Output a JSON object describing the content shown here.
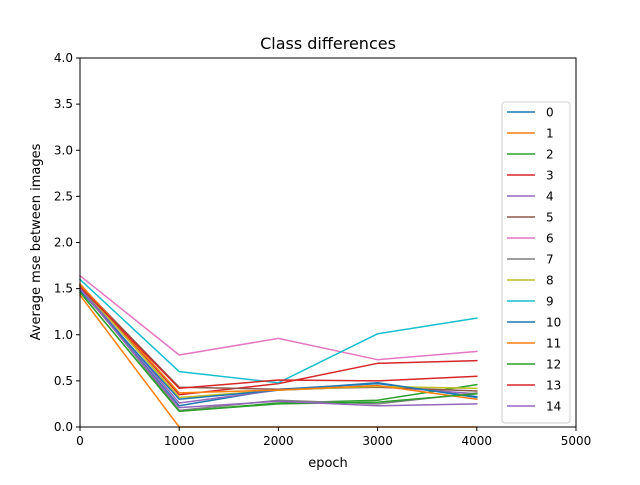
{
  "chart_data": {
    "type": "line",
    "title": "Class differences",
    "xlabel": "epoch",
    "ylabel": "Average mse between images",
    "xlim": [
      0,
      5000
    ],
    "ylim": [
      0,
      4.0
    ],
    "x_ticks": [
      0,
      1000,
      2000,
      3000,
      4000,
      5000
    ],
    "x_tick_labels": [
      "0",
      "1000",
      "2000",
      "3000",
      "4000",
      "5000"
    ],
    "y_ticks": [
      0,
      0.5,
      1.0,
      1.5,
      2.0,
      2.5,
      3.0,
      3.5,
      4.0
    ],
    "y_tick_labels": [
      "0.0",
      "0.5",
      "1.0",
      "1.5",
      "2.0",
      "2.5",
      "3.0",
      "3.5",
      "4.0"
    ],
    "grid": false,
    "legend_position": "right",
    "x": [
      0,
      1000,
      2000,
      3000,
      4000
    ],
    "series": [
      {
        "name": "0",
        "color": "#1f77b4",
        "values": [
          1.5,
          0.23,
          0.41,
          0.47,
          0.33
        ]
      },
      {
        "name": "1",
        "color": "#ff7f0e",
        "values": [
          1.43,
          0.0,
          0.0,
          0.0,
          0.0
        ]
      },
      {
        "name": "2",
        "color": "#2ca02c",
        "values": [
          1.46,
          0.17,
          0.26,
          0.29,
          0.46
        ]
      },
      {
        "name": "3",
        "color": "#d62728",
        "values": [
          1.55,
          0.35,
          0.47,
          0.69,
          0.72
        ]
      },
      {
        "name": "4",
        "color": "#9467bd",
        "values": [
          1.52,
          0.26,
          0.4,
          0.44,
          0.36
        ]
      },
      {
        "name": "5",
        "color": "#8c564b",
        "values": [
          1.54,
          0.43,
          0.41,
          0.43,
          0.39
        ]
      },
      {
        "name": "6",
        "color": "#e377c2",
        "values": [
          1.64,
          0.78,
          0.96,
          0.73,
          0.82
        ]
      },
      {
        "name": "7",
        "color": "#7f7f7f",
        "values": [
          1.52,
          0.18,
          0.29,
          0.25,
          0.37
        ]
      },
      {
        "name": "8",
        "color": "#bcbd22",
        "values": [
          1.53,
          0.32,
          0.4,
          0.44,
          0.42
        ]
      },
      {
        "name": "9",
        "color": "#17becf",
        "values": [
          1.6,
          0.6,
          0.48,
          1.01,
          1.18
        ]
      },
      {
        "name": "10",
        "color": "#1f77b4",
        "values": [
          1.48,
          0.3,
          0.4,
          0.48,
          0.32
        ]
      },
      {
        "name": "11",
        "color": "#ff7f0e",
        "values": [
          1.55,
          0.37,
          0.4,
          0.45,
          0.3
        ]
      },
      {
        "name": "12",
        "color": "#2ca02c",
        "values": [
          1.46,
          0.17,
          0.25,
          0.27,
          0.36
        ]
      },
      {
        "name": "13",
        "color": "#d62728",
        "values": [
          1.52,
          0.42,
          0.51,
          0.5,
          0.55
        ]
      },
      {
        "name": "14",
        "color": "#9467bd",
        "values": [
          1.5,
          0.21,
          0.28,
          0.23,
          0.25
        ]
      }
    ]
  }
}
